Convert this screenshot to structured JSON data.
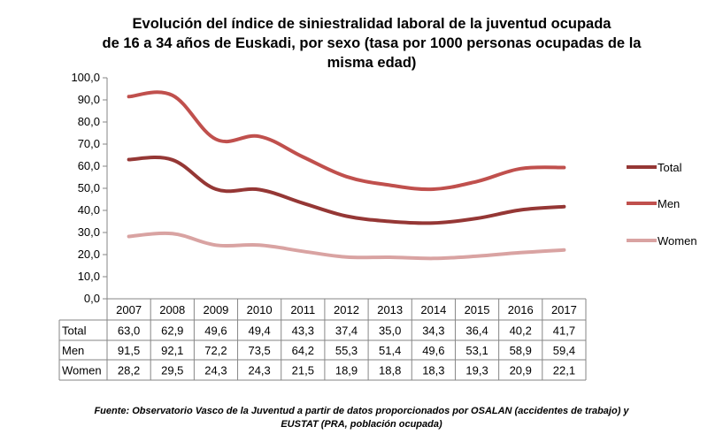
{
  "chart_data": {
    "type": "line",
    "title_lines": [
      "Evolución del índice de siniestralidad laboral de la juventud ocupada",
      "de 16 a 34 años de Euskadi, por sexo (tasa por 1000 personas ocupadas de la",
      "misma edad)"
    ],
    "categories": [
      "2007",
      "2008",
      "2009",
      "2010",
      "2011",
      "2012",
      "2013",
      "2014",
      "2015",
      "2016",
      "2017"
    ],
    "series": [
      {
        "name": "Total",
        "color": "#953735",
        "values": [
          63.0,
          62.9,
          49.6,
          49.4,
          43.3,
          37.4,
          35.0,
          34.3,
          36.4,
          40.2,
          41.7
        ],
        "labels": [
          "63,0",
          "62,9",
          "49,6",
          "49,4",
          "43,3",
          "37,4",
          "35,0",
          "34,3",
          "36,4",
          "40,2",
          "41,7"
        ]
      },
      {
        "name": "Men",
        "color": "#C0504D",
        "values": [
          91.5,
          92.1,
          72.2,
          73.5,
          64.2,
          55.3,
          51.4,
          49.6,
          53.1,
          58.9,
          59.4
        ],
        "labels": [
          "91,5",
          "92,1",
          "72,2",
          "73,5",
          "64,2",
          "55,3",
          "51,4",
          "49,6",
          "53,1",
          "58,9",
          "59,4"
        ]
      },
      {
        "name": "Women",
        "color": "#D9A3A2",
        "values": [
          28.2,
          29.5,
          24.3,
          24.3,
          21.5,
          18.9,
          18.8,
          18.3,
          19.3,
          20.9,
          22.1
        ],
        "labels": [
          "28,2",
          "29,5",
          "24,3",
          "24,3",
          "21,5",
          "18,9",
          "18,8",
          "18,3",
          "19,3",
          "20,9",
          "22,1"
        ]
      }
    ],
    "ylim": [
      0,
      100
    ],
    "yticks": [
      "0,0",
      "10,0",
      "20,0",
      "30,0",
      "40,0",
      "50,0",
      "60,0",
      "70,0",
      "80,0",
      "90,0",
      "100,0"
    ],
    "grid": false,
    "legend_position": "right",
    "data_table": true
  },
  "footer_lines": [
    "Fuente: Observatorio Vasco de la Juventud a partir de datos proporcionados por OSALAN (accidentes de trabajo)  y",
    "EUSTAT (PRA, población ocupada)"
  ]
}
